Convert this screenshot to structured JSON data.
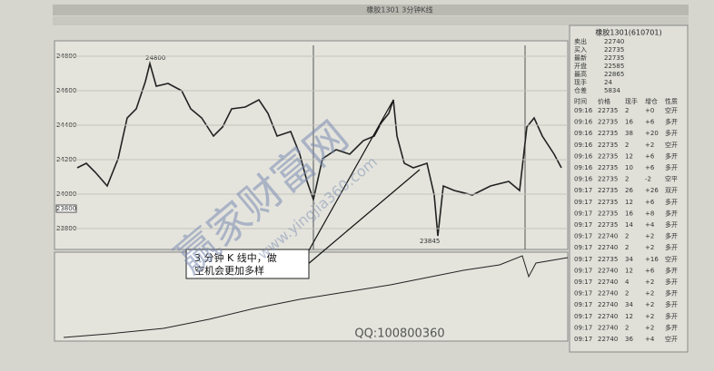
{
  "header": {
    "title": "橡胶1301 3分钟K线"
  },
  "chart": {
    "price_labels": [
      "24800",
      "24600",
      "24400",
      "24200",
      "24000",
      "23800"
    ],
    "high_label": "24800",
    "low_label": "23845",
    "left_label": "23800"
  },
  "annotation": {
    "lines": [
      "3 分钟 K 线中，做",
      "空机会更加多样"
    ]
  },
  "watermark": {
    "text": "赢家财富网",
    "url": "www.yingjia360.com",
    "qq": "QQ:100800360"
  },
  "quote": {
    "title": "橡胶1301(610701)",
    "fields": [
      [
        "卖出",
        "22740"
      ],
      [
        "买入",
        "22735"
      ],
      [
        "最新",
        "22735"
      ],
      [
        "开盘",
        "22585"
      ],
      [
        "最高",
        "22865"
      ],
      [
        "现手",
        "24"
      ],
      [
        "仓差",
        "5834"
      ]
    ],
    "columns": [
      "时间",
      "价格",
      "现手",
      "增仓",
      "性质"
    ],
    "rows": [
      [
        "09:16",
        "22735",
        "2",
        "+0",
        "空开"
      ],
      [
        "09:16",
        "22735",
        "16",
        "+6",
        "多开"
      ],
      [
        "09:16",
        "22735",
        "38",
        "+20",
        "多开"
      ],
      [
        "09:16",
        "22735",
        "2",
        "+2",
        "空开"
      ],
      [
        "09:16",
        "22735",
        "12",
        "+6",
        "多开"
      ],
      [
        "09:16",
        "22735",
        "10",
        "+6",
        "多开"
      ],
      [
        "09:16",
        "22735",
        "2",
        "-2",
        "空平"
      ],
      [
        "09:17",
        "22735",
        "26",
        "+26",
        "双开"
      ],
      [
        "09:17",
        "22735",
        "12",
        "+6",
        "多开"
      ],
      [
        "09:17",
        "22735",
        "16",
        "+8",
        "多开"
      ],
      [
        "09:17",
        "22735",
        "14",
        "+4",
        "多开"
      ],
      [
        "09:17",
        "22740",
        "2",
        "+2",
        "多开"
      ],
      [
        "09:17",
        "22740",
        "2",
        "+2",
        "多开"
      ],
      [
        "09:17",
        "22735",
        "34",
        "+16",
        "空开"
      ],
      [
        "09:17",
        "22740",
        "12",
        "+6",
        "多开"
      ],
      [
        "09:17",
        "22740",
        "4",
        "+2",
        "多开"
      ],
      [
        "09:17",
        "22740",
        "2",
        "+2",
        "多开"
      ],
      [
        "09:17",
        "22740",
        "34",
        "+2",
        "多开"
      ],
      [
        "09:17",
        "22740",
        "12",
        "+2",
        "多开"
      ],
      [
        "09:17",
        "22740",
        "2",
        "+2",
        "多开"
      ],
      [
        "09:17",
        "22740",
        "36",
        "+4",
        "空开"
      ]
    ]
  }
}
